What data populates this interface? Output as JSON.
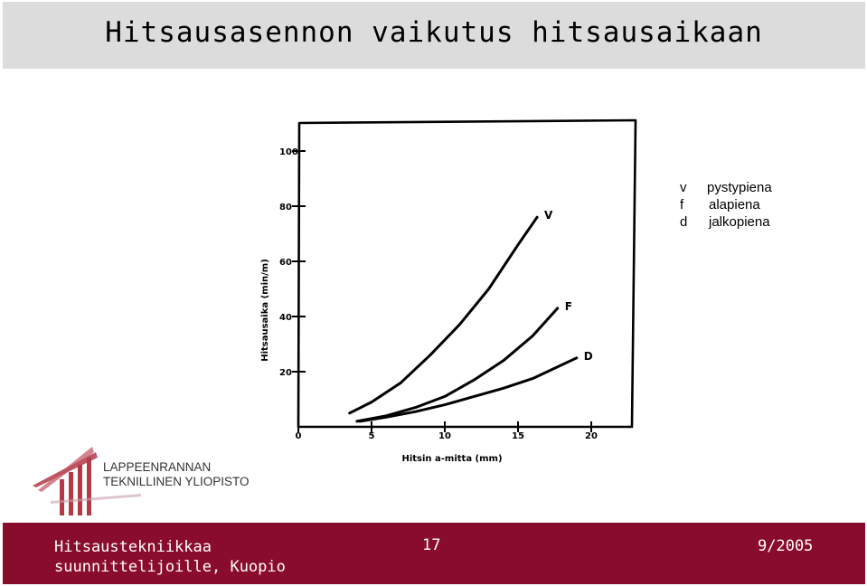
{
  "slide": {
    "title": "Hitsausasennon vaikutus hitsausaikaan"
  },
  "legend": [
    {
      "key": "v",
      "desc": "pystypiena"
    },
    {
      "key": "f",
      "desc": "alapiena"
    },
    {
      "key": "d",
      "desc": "jalkopiena"
    }
  ],
  "logo": {
    "line1": "LAPPEENRANNAN",
    "line2": "TEKNILLINEN YLIOPISTO"
  },
  "footer": {
    "left_line1": "Hitsaustekniikkaa",
    "left_line2": "suunnittelijoille, Kuopio",
    "page_number": "17",
    "date": "9/2005",
    "color": "#8a0c2c"
  },
  "chart_data": {
    "type": "line",
    "xlabel": "Hitsin a-mitta (mm)",
    "ylabel": "Hitsausaika (min/m)",
    "xticks": [
      "0",
      "5",
      "10",
      "15",
      "20"
    ],
    "yticks": [
      "20",
      "40",
      "60",
      "80",
      "100"
    ],
    "xlim": [
      0,
      21
    ],
    "ylim": [
      0,
      104
    ],
    "grid": false,
    "series": [
      {
        "name": "V",
        "x": [
          3.5,
          5,
          7,
          9,
          11,
          13,
          15,
          16.3
        ],
        "y": [
          5,
          9,
          16,
          26,
          37,
          50,
          66,
          76
        ]
      },
      {
        "name": "F",
        "x": [
          4,
          6,
          8,
          10,
          12,
          14,
          16,
          17.7
        ],
        "y": [
          2,
          4,
          7,
          11,
          17,
          24,
          33,
          43
        ]
      },
      {
        "name": "D",
        "x": [
          4.2,
          6,
          8,
          10,
          12,
          14,
          16,
          19
        ],
        "y": [
          2,
          3.5,
          5.5,
          8,
          11,
          14,
          17.5,
          25
        ]
      }
    ]
  }
}
